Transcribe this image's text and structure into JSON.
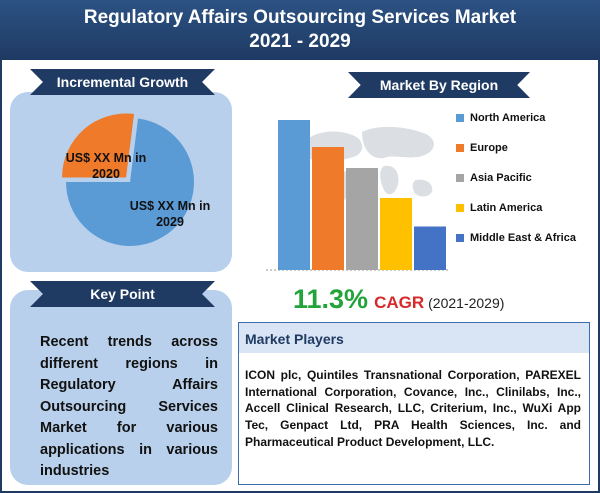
{
  "header": {
    "title_line1": "Regulatory Affairs Outsourcing Services Market",
    "title_line2": "2021 - 2029"
  },
  "incremental": {
    "heading": "Incremental Growth",
    "label_2020": "US$ XX Mn in 2020",
    "label_2029": "US$ XX Mn in 2029"
  },
  "keypoint": {
    "heading": "Key Point",
    "text": "Recent trends across different regions in Regulatory Affairs Outsourcing Services Market for various applications in various industries"
  },
  "region": {
    "heading": "Market By Region"
  },
  "cagr": {
    "value": "11.3%",
    "label": "CAGR",
    "years": "(2021-2029)"
  },
  "players": {
    "heading": "Market Players",
    "text": "ICON plc, Quintiles Transnational Corporation, PAREXEL International Corporation, Covance, Inc., Clinilabs, Inc., Accell Clinical Research, LLC, Criterium, Inc., WuXi App Tec, Genpact Ltd, PRA Health Sciences, Inc. and Pharmaceutical Product Development, LLC."
  },
  "chart_data": [
    {
      "type": "pie",
      "categories": [
        "2020",
        "2029"
      ],
      "values": [
        27,
        73
      ],
      "labels": [
        "US$ XX Mn in 2020",
        "US$ XX Mn in 2029"
      ],
      "colors": [
        "#ee7a2a",
        "#5b9bd5"
      ]
    },
    {
      "type": "bar",
      "categories": [
        "North America",
        "Europe",
        "Asia Pacific",
        "Latin America",
        "Middle East & Africa"
      ],
      "values": [
        100,
        82,
        68,
        48,
        29
      ],
      "colors": [
        "#5b9bd5",
        "#ee7a2a",
        "#a5a5a5",
        "#ffc000",
        "#4472c4"
      ],
      "legend": "right"
    }
  ]
}
